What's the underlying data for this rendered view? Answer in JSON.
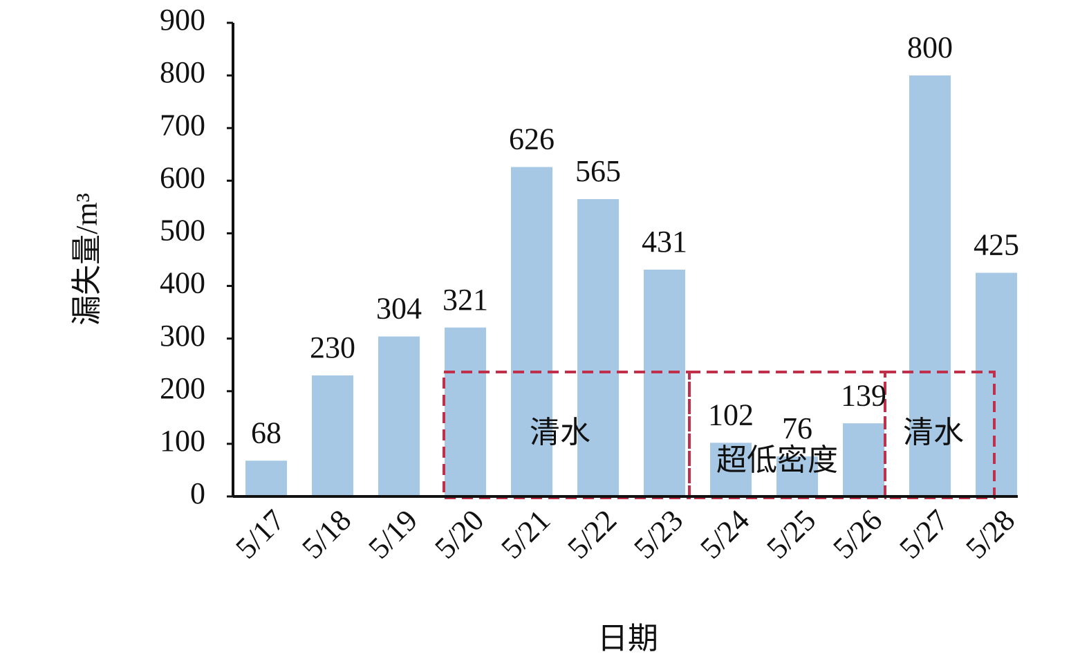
{
  "chart_data": {
    "type": "bar",
    "x_label": "日期",
    "y_label": "漏失量/m³",
    "categories": [
      "5/17",
      "5/18",
      "5/19",
      "5/20",
      "5/21",
      "5/22",
      "5/23",
      "5/24",
      "5/25",
      "5/26",
      "5/27",
      "5/28"
    ],
    "values": [
      68,
      230,
      304,
      321,
      626,
      565,
      431,
      102,
      76,
      139,
      800,
      425
    ],
    "color": "#a7c8e4",
    "ylim": [
      0,
      900
    ],
    "yticks": [
      0,
      100,
      200,
      300,
      400,
      500,
      600,
      700,
      800,
      900
    ],
    "grid": false,
    "annotations": [
      "清水",
      "超低密度",
      "清水"
    ]
  }
}
